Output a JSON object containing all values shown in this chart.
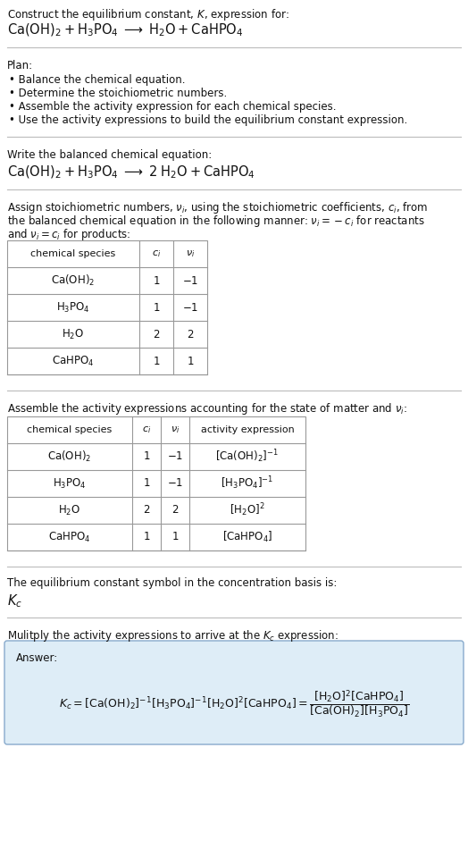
{
  "title_line1": "Construct the equilibrium constant, $K$, expression for:",
  "title_line2": "$\\mathrm{Ca(OH)_2 + H_3PO_4 \\;\\longrightarrow\\; H_2O + CaHPO_4}$",
  "plan_header": "Plan:",
  "plan_bullets": [
    "Balance the chemical equation.",
    "Determine the stoichiometric numbers.",
    "Assemble the activity expression for each chemical species.",
    "Use the activity expressions to build the equilibrium constant expression."
  ],
  "balanced_header": "Write the balanced chemical equation:",
  "balanced_eq": "$\\mathrm{Ca(OH)_2 + H_3PO_4 \\;\\longrightarrow\\; 2\\; H_2O + CaHPO_4}$",
  "stoich_header1": "Assign stoichiometric numbers, $\\nu_i$, using the stoichiometric coefficients, $c_i$, from",
  "stoich_header2": "the balanced chemical equation in the following manner: $\\nu_i = -c_i$ for reactants",
  "stoich_header3": "and $\\nu_i = c_i$ for products:",
  "table1_headers": [
    "chemical species",
    "$c_i$",
    "$\\nu_i$"
  ],
  "table1_rows": [
    [
      "$\\mathrm{Ca(OH)_2}$",
      "1",
      "$-1$"
    ],
    [
      "$\\mathrm{H_3PO_4}$",
      "1",
      "$-1$"
    ],
    [
      "$\\mathrm{H_2O}$",
      "2",
      "2"
    ],
    [
      "$\\mathrm{CaHPO_4}$",
      "1",
      "1"
    ]
  ],
  "activity_header": "Assemble the activity expressions accounting for the state of matter and $\\nu_i$:",
  "table2_headers": [
    "chemical species",
    "$c_i$",
    "$\\nu_i$",
    "activity expression"
  ],
  "table2_rows": [
    [
      "$\\mathrm{Ca(OH)_2}$",
      "1",
      "$-1$",
      "$[\\mathrm{Ca(OH)_2}]^{-1}$"
    ],
    [
      "$\\mathrm{H_3PO_4}$",
      "1",
      "$-1$",
      "$[\\mathrm{H_3PO_4}]^{-1}$"
    ],
    [
      "$\\mathrm{H_2O}$",
      "2",
      "2",
      "$[\\mathrm{H_2O}]^{2}$"
    ],
    [
      "$\\mathrm{CaHPO_4}$",
      "1",
      "1",
      "$[\\mathrm{CaHPO_4}]$"
    ]
  ],
  "kc_symbol_header": "The equilibrium constant symbol in the concentration basis is:",
  "kc_symbol": "$K_c$",
  "multiply_header": "Mulitply the activity expressions to arrive at the $K_c$ expression:",
  "answer_label": "Answer:",
  "answer_eq": "$K_c = [\\mathrm{Ca(OH)_2}]^{-1} [\\mathrm{H_3PO_4}]^{-1} [\\mathrm{H_2O}]^{2} [\\mathrm{CaHPO_4}] = \\dfrac{[\\mathrm{H_2O}]^{2} [\\mathrm{CaHPO_4}]}{[\\mathrm{Ca(OH)_2}] [\\mathrm{H_3PO_4}]}$",
  "bg_color": "#ffffff",
  "table_border_color": "#999999",
  "answer_box_color": "#deedf7",
  "answer_box_border": "#88aacc",
  "text_color": "#111111",
  "separator_color": "#bbbbbb",
  "font_size": 8.5
}
